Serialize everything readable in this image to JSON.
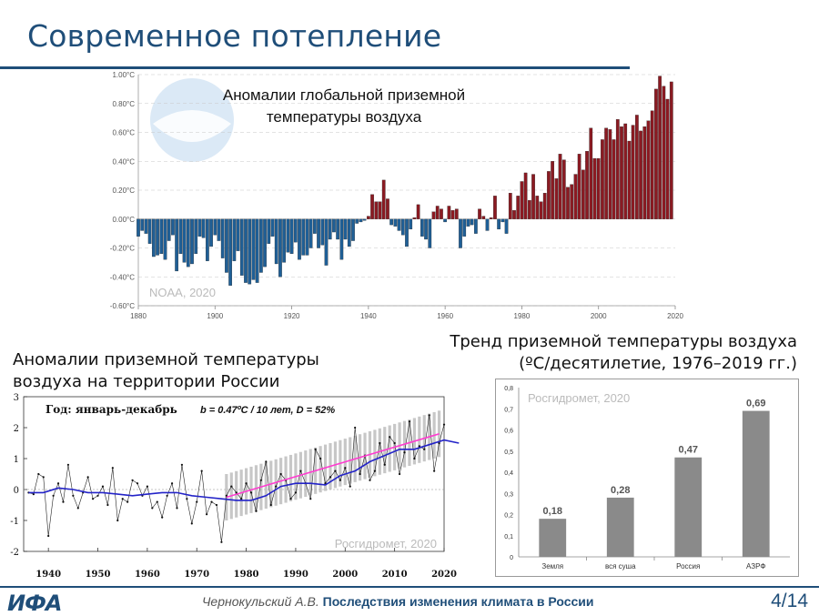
{
  "slide": {
    "title": "Современное потепление",
    "page": "4/14"
  },
  "footer": {
    "author": "Чернокульский А.В.",
    "title": "Последствия изменения климата в России"
  },
  "logo": {
    "text": "ИФА"
  },
  "colors": {
    "brand": "#1f4e79",
    "warm": "#8b1a22",
    "cold": "#1f5f96",
    "gray_bar": "#8a8a8a",
    "trend_line": "#ff3cd0",
    "smooth_line": "#2323c8"
  },
  "captions": {
    "russia": "Аномалии приземной температуры воздуха на территории России",
    "trend": "Тренд приземной температуры воздуха (ºC/десятилетие, 1976–2019 гг.)"
  },
  "chart_data": [
    {
      "type": "bar",
      "title": "Аномалии глобальной приземной температуры воздуха",
      "source": "NOAA, 2020",
      "x": [
        1880,
        1881,
        1882,
        1883,
        1884,
        1885,
        1886,
        1887,
        1888,
        1889,
        1890,
        1891,
        1892,
        1893,
        1894,
        1895,
        1896,
        1897,
        1898,
        1899,
        1900,
        1901,
        1902,
        1903,
        1904,
        1905,
        1906,
        1907,
        1908,
        1909,
        1910,
        1911,
        1912,
        1913,
        1914,
        1915,
        1916,
        1917,
        1918,
        1919,
        1920,
        1921,
        1922,
        1923,
        1924,
        1925,
        1926,
        1927,
        1928,
        1929,
        1930,
        1931,
        1932,
        1933,
        1934,
        1935,
        1936,
        1937,
        1938,
        1939,
        1940,
        1941,
        1942,
        1943,
        1944,
        1945,
        1946,
        1947,
        1948,
        1949,
        1950,
        1951,
        1952,
        1953,
        1954,
        1955,
        1956,
        1957,
        1958,
        1959,
        1960,
        1961,
        1962,
        1963,
        1964,
        1965,
        1966,
        1967,
        1968,
        1969,
        1970,
        1971,
        1972,
        1973,
        1974,
        1975,
        1976,
        1977,
        1978,
        1979,
        1980,
        1981,
        1982,
        1983,
        1984,
        1985,
        1986,
        1987,
        1988,
        1989,
        1990,
        1991,
        1992,
        1993,
        1994,
        1995,
        1996,
        1997,
        1998,
        1999,
        2000,
        2001,
        2002,
        2003,
        2004,
        2005,
        2006,
        2007,
        2008,
        2009,
        2010,
        2011,
        2012,
        2013,
        2014,
        2015,
        2016,
        2017,
        2018,
        2019
      ],
      "values": [
        -0.12,
        -0.08,
        -0.1,
        -0.17,
        -0.26,
        -0.25,
        -0.24,
        -0.28,
        -0.15,
        -0.11,
        -0.36,
        -0.24,
        -0.3,
        -0.33,
        -0.31,
        -0.24,
        -0.12,
        -0.13,
        -0.29,
        -0.19,
        -0.11,
        -0.15,
        -0.27,
        -0.37,
        -0.46,
        -0.29,
        -0.22,
        -0.39,
        -0.44,
        -0.45,
        -0.42,
        -0.44,
        -0.37,
        -0.33,
        -0.17,
        -0.12,
        -0.31,
        -0.4,
        -0.3,
        -0.23,
        -0.24,
        -0.16,
        -0.28,
        -0.25,
        -0.25,
        -0.2,
        -0.1,
        -0.2,
        -0.18,
        -0.32,
        -0.14,
        -0.09,
        -0.14,
        -0.28,
        -0.14,
        -0.19,
        -0.15,
        -0.03,
        -0.02,
        -0.01,
        0.02,
        0.17,
        0.12,
        0.12,
        0.27,
        0.14,
        -0.04,
        -0.05,
        -0.08,
        -0.11,
        -0.19,
        -0.07,
        0.01,
        0.1,
        -0.12,
        -0.14,
        -0.2,
        0.05,
        0.09,
        0.07,
        -0.02,
        0.09,
        0.06,
        0.07,
        -0.2,
        -0.12,
        -0.05,
        -0.04,
        -0.1,
        0.07,
        0.02,
        -0.08,
        0.01,
        0.16,
        -0.07,
        -0.02,
        -0.1,
        0.18,
        0.06,
        0.16,
        0.26,
        0.32,
        0.13,
        0.31,
        0.16,
        0.12,
        0.18,
        0.33,
        0.4,
        0.28,
        0.45,
        0.41,
        0.22,
        0.24,
        0.31,
        0.45,
        0.34,
        0.47,
        0.63,
        0.42,
        0.42,
        0.55,
        0.63,
        0.62,
        0.55,
        0.69,
        0.64,
        0.66,
        0.54,
        0.65,
        0.72,
        0.61,
        0.64,
        0.68,
        0.75,
        0.9,
        0.99,
        0.92,
        0.83,
        0.95
      ],
      "ylim": [
        -0.6,
        1.0
      ],
      "yticks": [
        "-0.60°C",
        "-0.40°C",
        "-0.20°C",
        "0.00°C",
        "0.20°C",
        "0.40°C",
        "0.60°C",
        "0.80°C",
        "1.00°C"
      ],
      "xticks": [
        "1880",
        "1900",
        "1920",
        "1940",
        "1960",
        "1980",
        "2000",
        "2020"
      ],
      "grid": true
    },
    {
      "type": "line",
      "title": "Год: январь-декабрь",
      "annotation": "b = 0.47ºC / 10 лет, D = 52%",
      "source": "Росгидромет, 2020",
      "x_start": 1936,
      "values": [
        -0.1,
        -0.15,
        0.5,
        0.4,
        -1.5,
        -0.2,
        0.2,
        -0.4,
        0.8,
        -0.2,
        -0.6,
        -0.1,
        0.4,
        -0.3,
        -0.2,
        0.1,
        -0.5,
        0.7,
        -1.0,
        -0.3,
        -0.4,
        0.3,
        0.2,
        -0.2,
        0.1,
        -0.6,
        -0.4,
        -0.9,
        -0.2,
        0.2,
        -0.6,
        0.8,
        -0.3,
        -1.1,
        -0.4,
        0.6,
        -0.8,
        -0.4,
        -0.5,
        -1.7,
        -0.2,
        0.1,
        -0.1,
        -0.3,
        0.2,
        -0.1,
        -0.7,
        0.3,
        0.9,
        -0.5,
        0.1,
        0.5,
        0.3,
        -0.3,
        -0.1,
        0.6,
        0.2,
        -0.3,
        1.3,
        1.0,
        0.2,
        0.4,
        0.6,
        0.3,
        0.7,
        0.1,
        2.0,
        0.5,
        1.1,
        0.3,
        0.6,
        1.5,
        0.8,
        1.7,
        1.5,
        0.5,
        1.2,
        2.2,
        1.0,
        1.4,
        1.3,
        2.4,
        0.6,
        1.5,
        2.1
      ],
      "smooth_values": [
        -0.1,
        -0.1,
        0.05,
        0.0,
        -0.1,
        -0.1,
        -0.15,
        -0.2,
        -0.15,
        -0.1,
        -0.1,
        -0.2,
        -0.25,
        -0.3,
        -0.35,
        -0.35,
        -0.2,
        0.1,
        0.2,
        0.2,
        0.15,
        0.45,
        0.6,
        0.9,
        1.1,
        1.3,
        1.3,
        1.45,
        1.6,
        1.5
      ],
      "smooth_start": 1936,
      "smooth_step": 3,
      "trend": {
        "x": [
          1976,
          2019
        ],
        "y": [
          -0.25,
          1.8
        ]
      },
      "ylim": [
        -2,
        3
      ],
      "yticks": [
        "-2",
        "-1",
        "0",
        "1",
        "2",
        "3"
      ],
      "xticks": [
        "1940",
        "1950",
        "1960",
        "1970",
        "1980",
        "1990",
        "2000",
        "2010",
        "2020"
      ],
      "grid": false
    },
    {
      "type": "bar",
      "source": "Росгидромет, 2020",
      "categories": [
        "Земля",
        "вся суша",
        "Россия",
        "АЗРФ"
      ],
      "values": [
        0.18,
        0.28,
        0.47,
        0.69
      ],
      "value_labels": [
        "0,18",
        "0,28",
        "0,47",
        "0,69"
      ],
      "ylim": [
        0,
        0.8
      ],
      "yticks": [
        "0",
        "0,1",
        "0,2",
        "0,3",
        "0,4",
        "0,5",
        "0,6",
        "0,7",
        "0,8"
      ],
      "grid": false
    }
  ]
}
